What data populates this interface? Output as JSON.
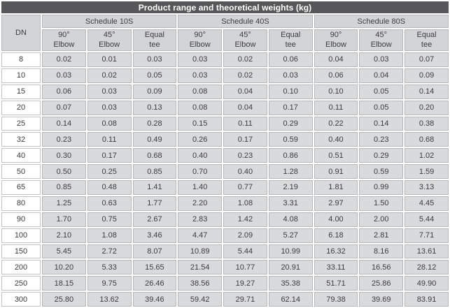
{
  "title": "Product range and theoretical weights (kg)",
  "colors": {
    "title_bar_bg": "#57575a",
    "title_text": "#ffffff",
    "header_cell_bg": "#d3d4d6",
    "data_cell_bg": "#d9dadb",
    "dn_cell_bg": "#ffffff",
    "grid_line": "#b6b7b9",
    "text": "#3c3c3e"
  },
  "table": {
    "dn_header": "DN",
    "groups": [
      {
        "label": "Schedule 10S"
      },
      {
        "label": "Schedule 40S"
      },
      {
        "label": "Schedule 80S"
      }
    ],
    "sub_headers": [
      {
        "top": "90°",
        "bottom": "Elbow"
      },
      {
        "top": "45°",
        "bottom": "Elbow"
      },
      {
        "top": "Equal",
        "bottom": "tee"
      },
      {
        "top": "90°",
        "bottom": "Elbow"
      },
      {
        "top": "45°",
        "bottom": "Elbow"
      },
      {
        "top": "Equal",
        "bottom": "tee"
      },
      {
        "top": "90°",
        "bottom": "Elbow"
      },
      {
        "top": "45°",
        "bottom": "Elbow"
      },
      {
        "top": "Equal",
        "bottom": "tee"
      }
    ],
    "rows": [
      {
        "dn": "8",
        "values": [
          "0.02",
          "0.01",
          "0.03",
          "0.03",
          "0.02",
          "0.06",
          "0.04",
          "0.03",
          "0.07"
        ]
      },
      {
        "dn": "10",
        "values": [
          "0.03",
          "0.02",
          "0.05",
          "0.03",
          "0.02",
          "0.03",
          "0.06",
          "0.04",
          "0.09"
        ]
      },
      {
        "dn": "15",
        "values": [
          "0.06",
          "0.03",
          "0.09",
          "0.08",
          "0.04",
          "0.10",
          "0.10",
          "0.05",
          "0.14"
        ]
      },
      {
        "dn": "20",
        "values": [
          "0.07",
          "0.03",
          "0.13",
          "0.08",
          "0.04",
          "0.17",
          "0.11",
          "0.05",
          "0.20"
        ]
      },
      {
        "dn": "25",
        "values": [
          "0.14",
          "0.08",
          "0.28",
          "0.15",
          "0.11",
          "0.29",
          "0.22",
          "0.14",
          "0.38"
        ]
      },
      {
        "dn": "32",
        "values": [
          "0.23",
          "0.11",
          "0.49",
          "0.26",
          "0.17",
          "0.59",
          "0.40",
          "0.23",
          "0.68"
        ]
      },
      {
        "dn": "40",
        "values": [
          "0.30",
          "0.17",
          "0.68",
          "0.40",
          "0.23",
          "0.86",
          "0.51",
          "0.29",
          "1.02"
        ]
      },
      {
        "dn": "50",
        "values": [
          "0.50",
          "0.25",
          "0.85",
          "0.70",
          "0.40",
          "1.28",
          "0.91",
          "0.59",
          "1.59"
        ]
      },
      {
        "dn": "65",
        "values": [
          "0.85",
          "0.48",
          "1.41",
          "1.40",
          "0.77",
          "2.19",
          "1.81",
          "0.99",
          "3.13"
        ]
      },
      {
        "dn": "80",
        "values": [
          "1.25",
          "0.63",
          "1.77",
          "2.20",
          "1.08",
          "3.31",
          "2.97",
          "1.50",
          "4.45"
        ]
      },
      {
        "dn": "90",
        "values": [
          "1.70",
          "0.75",
          "2.67",
          "2.83",
          "1.42",
          "4.08",
          "4.00",
          "2.00",
          "5.44"
        ]
      },
      {
        "dn": "100",
        "values": [
          "2.10",
          "1.08",
          "3.46",
          "4.47",
          "2.09",
          "5.27",
          "6.18",
          "2.81",
          "7.71"
        ]
      },
      {
        "dn": "150",
        "values": [
          "5.45",
          "2.72",
          "8.07",
          "10.89",
          "5.44",
          "10.99",
          "16.32",
          "8.16",
          "13.61"
        ]
      },
      {
        "dn": "200",
        "values": [
          "10.20",
          "5.33",
          "15.65",
          "21.54",
          "10.77",
          "20.91",
          "33.11",
          "16.56",
          "28.12"
        ]
      },
      {
        "dn": "250",
        "values": [
          "18.15",
          "9.75",
          "26.46",
          "38.56",
          "19.27",
          "35.38",
          "51.71",
          "25.86",
          "49.90"
        ]
      },
      {
        "dn": "300",
        "values": [
          "25.80",
          "13.62",
          "39.46",
          "59.42",
          "29.71",
          "62.14",
          "79.38",
          "39.69",
          "83.91"
        ]
      }
    ]
  }
}
